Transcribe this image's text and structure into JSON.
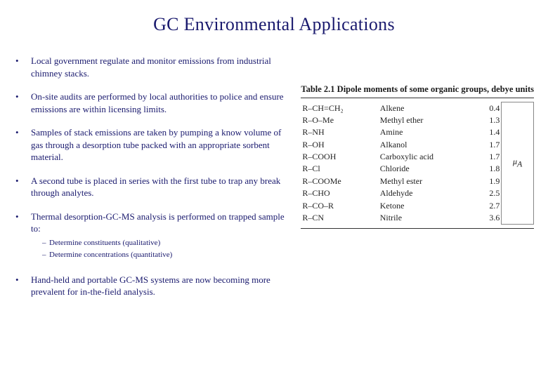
{
  "title": "GC Environmental Applications",
  "bullets": [
    {
      "text": "Local government regulate and monitor emissions from industrial chimney stacks."
    },
    {
      "text": "On-site audits are performed by local authorities to police and ensure emissions are within licensing limits."
    },
    {
      "text": "Samples of stack emissions are taken by pumping a know volume of gas through a desorption tube packed with an appropriate sorbent material."
    },
    {
      "text": "A second tube is placed in series with the first tube to trap any break through analytes."
    },
    {
      "text": "Thermal desorption-GC-MS analysis is performed on trapped sample to:",
      "sub": [
        "Determine constituents (qualitative)",
        "Determine concentrations (quantitative)"
      ]
    },
    {
      "text": "Hand-held and portable GC-MS systems are now becoming more prevalent for in-the-field analysis."
    }
  ],
  "table": {
    "caption": "Table 2.1   Dipole moments of some organic groups, debye units",
    "mu_symbol": "μ",
    "mu_sub": "A",
    "mu_row_index": 4,
    "rows": [
      {
        "formula": "R–CH=CH₂",
        "name": "Alkene",
        "value": "0.4"
      },
      {
        "formula": "R–O–Me",
        "name": "Methyl ether",
        "value": "1.3"
      },
      {
        "formula": "R–NH",
        "name": "Amine",
        "value": "1.4"
      },
      {
        "formula": "R–OH",
        "name": "Alkanol",
        "value": "1.7"
      },
      {
        "formula": "R–COOH",
        "name": "Carboxylic acid",
        "value": "1.7"
      },
      {
        "formula": "R–Cl",
        "name": "Chloride",
        "value": "1.8"
      },
      {
        "formula": "R–COOMe",
        "name": "Methyl ester",
        "value": "1.9"
      },
      {
        "formula": "R–CHO",
        "name": "Aldehyde",
        "value": "2.5"
      },
      {
        "formula": "R–CO–R",
        "name": "Ketone",
        "value": "2.7"
      },
      {
        "formula": "R–CN",
        "name": "Nitrile",
        "value": "3.6"
      }
    ]
  },
  "colors": {
    "title": "#1a1a6e",
    "body": "#1a1a6e",
    "table_text": "#222222",
    "background": "#ffffff",
    "rule": "#333333"
  }
}
